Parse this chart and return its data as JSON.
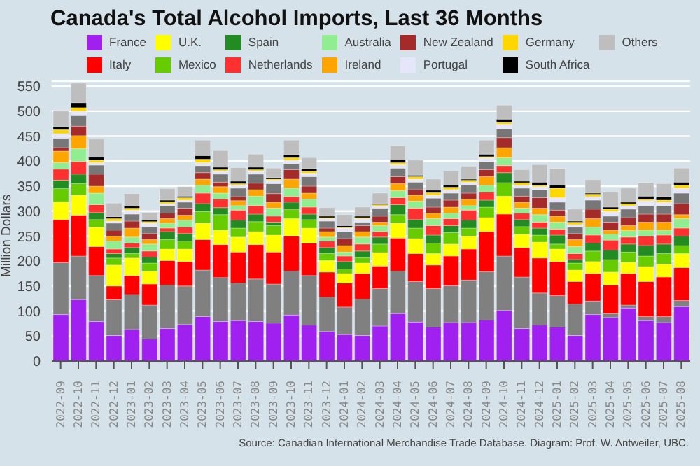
{
  "chart_data": {
    "type": "bar",
    "title": "Canada's Total Alcohol Imports, Last 36 Months",
    "ylabel": "Million Dollars",
    "stacked": true,
    "grid": "y",
    "legend": "top",
    "ylim": [
      0,
      560
    ],
    "yticks": [
      0,
      50,
      100,
      150,
      200,
      250,
      300,
      350,
      400,
      450,
      500,
      550
    ],
    "categories": [
      "2022-09",
      "2022-10",
      "2022-11",
      "2022-12",
      "2023-01",
      "2023-02",
      "2023-03",
      "2023-04",
      "2023-05",
      "2023-06",
      "2023-07",
      "2023-08",
      "2023-09",
      "2023-10",
      "2023-11",
      "2023-12",
      "2024-01",
      "2024-02",
      "2024-03",
      "2024-04",
      "2024-05",
      "2024-06",
      "2024-07",
      "2024-08",
      "2024-09",
      "2024-10",
      "2024-11",
      "2024-12",
      "2025-01",
      "2025-02",
      "2025-03",
      "2025-04",
      "2025-05",
      "2025-06",
      "2025-07",
      "2025-08"
    ],
    "series": [
      {
        "name": "France",
        "color": "#a020f0",
        "values": [
          93,
          123,
          79,
          51,
          63,
          44,
          65,
          73,
          89,
          79,
          81,
          79,
          76,
          92,
          72,
          59,
          53,
          51,
          70,
          95,
          78,
          68,
          77,
          77,
          82,
          101,
          65,
          72,
          68,
          51,
          93,
          87,
          106,
          81,
          77,
          109
        ]
      },
      {
        "color": "#808080",
        "values": [
          104,
          87,
          92,
          72,
          70,
          68,
          87,
          77,
          93,
          88,
          75,
          85,
          78,
          88,
          99,
          69,
          55,
          73,
          75,
          85,
          81,
          77,
          74,
          85,
          97,
          109,
          103,
          64,
          63,
          63,
          27,
          8,
          6,
          8,
          12,
          12
        ]
      },
      {
        "name": "Italy",
        "color": "#ff0000",
        "values": [
          86,
          82,
          58,
          27,
          38,
          42,
          49,
          49,
          61,
          66,
          62,
          69,
          64,
          70,
          65,
          50,
          48,
          51,
          45,
          66,
          56,
          47,
          59,
          62,
          80,
          84,
          59,
          70,
          68,
          45,
          55,
          57,
          63,
          70,
          79,
          66
        ]
      },
      {
        "name": "U.K.",
        "color": "#ffff00",
        "values": [
          36,
          40,
          39,
          42,
          35,
          26,
          23,
          25,
          33,
          29,
          30,
          26,
          34,
          35,
          30,
          23,
          19,
          21,
          27,
          30,
          30,
          23,
          24,
          26,
          28,
          36,
          27,
          32,
          25,
          23,
          24,
          26,
          23,
          30,
          26,
          28
        ]
      },
      {
        "name": "Mexico",
        "color": "#66cc00",
        "values": [
          26,
          23,
          15,
          14,
          9,
          16,
          19,
          16,
          23,
          31,
          18,
          20,
          19,
          19,
          17,
          14,
          9,
          11,
          17,
          17,
          21,
          21,
          23,
          16,
          21,
          27,
          15,
          14,
          10,
          14,
          21,
          25,
          20,
          21,
          21,
          16
        ]
      },
      {
        "name": "Spain",
        "color": "#228b22",
        "values": [
          17,
          19,
          14,
          9,
          12,
          12,
          16,
          15,
          16,
          14,
          16,
          15,
          7,
          14,
          11,
          12,
          15,
          13,
          14,
          20,
          17,
          16,
          14,
          16,
          14,
          20,
          14,
          14,
          18,
          7,
          16,
          19,
          16,
          21,
          19,
          19
        ]
      },
      {
        "name": "Netherlands",
        "color": "#ff3030",
        "values": [
          22,
          25,
          16,
          9,
          9,
          12,
          7,
          13,
          21,
          17,
          20,
          17,
          12,
          11,
          14,
          13,
          11,
          14,
          11,
          14,
          23,
          19,
          14,
          20,
          16,
          14,
          13,
          12,
          12,
          12,
          16,
          20,
          14,
          19,
          18,
          16
        ]
      },
      {
        "name": "Australia",
        "color": "#90ee90",
        "values": [
          13,
          26,
          23,
          16,
          12,
          14,
          10,
          14,
          16,
          12,
          9,
          19,
          16,
          17,
          16,
          8,
          8,
          14,
          12,
          14,
          14,
          14,
          11,
          9,
          14,
          16,
          10,
          15,
          14,
          14,
          16,
          12,
          13,
          12,
          10,
          19
        ]
      },
      {
        "name": "Ireland",
        "color": "#ffa500",
        "values": [
          23,
          26,
          14,
          10,
          18,
          9,
          9,
          10,
          12,
          13,
          10,
          13,
          12,
          18,
          12,
          11,
          13,
          11,
          7,
          14,
          12,
          11,
          12,
          13,
          17,
          20,
          12,
          13,
          12,
          14,
          17,
          8,
          10,
          16,
          16,
          8
        ]
      },
      {
        "name": "New Zealand",
        "color": "#a52a2a",
        "values": [
          7,
          19,
          24,
          12,
          14,
          12,
          11,
          14,
          13,
          9,
          8,
          13,
          17,
          19,
          14,
          7,
          14,
          12,
          12,
          14,
          11,
          12,
          14,
          12,
          14,
          20,
          12,
          21,
          12,
          12,
          19,
          16,
          16,
          16,
          16,
          22
        ]
      },
      {
        "color": "#777777",
        "values": [
          19,
          21,
          18,
          14,
          14,
          14,
          15,
          12,
          14,
          16,
          17,
          18,
          20,
          12,
          19,
          14,
          14,
          7,
          16,
          17,
          15,
          18,
          14,
          16,
          16,
          18,
          16,
          16,
          16,
          13,
          18,
          12,
          17,
          17,
          17,
          21
        ]
      },
      {
        "name": "Portugal",
        "color": "#e6e6fa",
        "values": [
          9,
          9,
          5,
          4,
          8,
          7,
          4,
          4,
          6,
          6,
          6,
          6,
          7,
          7,
          7,
          5,
          7,
          7,
          4,
          7,
          6,
          6,
          7,
          6,
          8,
          9,
          6,
          6,
          9,
          5,
          7,
          9,
          7,
          10,
          7,
          10
        ]
      },
      {
        "name": "Germany",
        "color": "#ffd700",
        "values": [
          8,
          7,
          5,
          5,
          4,
          3,
          4,
          5,
          7,
          3,
          3,
          3,
          2,
          5,
          4,
          2,
          2,
          2,
          3,
          4,
          5,
          5,
          5,
          4,
          2,
          4,
          5,
          3,
          19,
          5,
          5,
          5,
          4,
          3,
          4,
          6
        ]
      },
      {
        "name": "South Africa",
        "color": "#000000",
        "values": [
          6,
          10,
          6,
          4,
          4,
          3,
          3,
          3,
          7,
          5,
          5,
          5,
          3,
          6,
          5,
          3,
          3,
          3,
          2,
          7,
          3,
          5,
          4,
          2,
          5,
          6,
          3,
          6,
          6,
          2,
          2,
          4,
          3,
          6,
          7,
          6
        ]
      },
      {
        "name": "Others",
        "color": "#bebebe",
        "values": [
          31,
          39,
          36,
          27,
          25,
          14,
          23,
          19,
          31,
          33,
          27,
          26,
          19,
          29,
          22,
          17,
          22,
          18,
          21,
          27,
          30,
          22,
          28,
          26,
          28,
          28,
          23,
          35,
          33,
          24,
          27,
          30,
          28,
          27,
          26,
          28
        ]
      }
    ],
    "annotations": [
      "Source: Canadian International Merchandise Trade Database. Diagram: Prof. W. Antweiler, UBC."
    ]
  }
}
